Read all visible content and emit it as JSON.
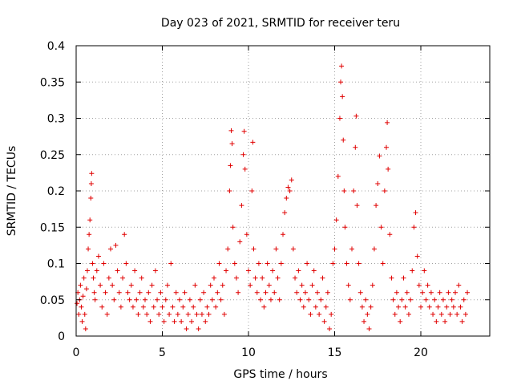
{
  "chart_data": {
    "type": "scatter",
    "title": "Day 023 of 2021, SRMTID for receiver teru",
    "xlabel": "GPS time / hours",
    "ylabel": "SRMTID / TECUs",
    "xlim": [
      0,
      24
    ],
    "ylim": [
      0,
      0.4
    ],
    "x_ticks": [
      0,
      5,
      10,
      15,
      20
    ],
    "x_tick_labels": [
      "0",
      "5",
      "10",
      "15",
      "20"
    ],
    "y_ticks": [
      0,
      0.05,
      0.1,
      0.15,
      0.2,
      0.25,
      0.3,
      0.35,
      0.4
    ],
    "y_tick_labels": [
      "0",
      "0.05",
      "0.1",
      "0.15",
      "0.2",
      "0.25",
      "0.3",
      "0.35",
      "0.4"
    ],
    "grid": true,
    "marker": "+",
    "marker_color": "#e00000",
    "series": [
      {
        "name": "teru",
        "points": [
          [
            0.05,
            0.045
          ],
          [
            0.1,
            0.06
          ],
          [
            0.15,
            0.03
          ],
          [
            0.2,
            0.05
          ],
          [
            0.25,
            0.07
          ],
          [
            0.3,
            0.04
          ],
          [
            0.35,
            0.02
          ],
          [
            0.4,
            0.055
          ],
          [
            0.45,
            0.08
          ],
          [
            0.5,
            0.03
          ],
          [
            0.55,
            0.01
          ],
          [
            0.6,
            0.065
          ],
          [
            0.65,
            0.09
          ],
          [
            0.7,
            0.12
          ],
          [
            0.75,
            0.14
          ],
          [
            0.8,
            0.16
          ],
          [
            0.85,
            0.19
          ],
          [
            0.88,
            0.21
          ],
          [
            0.9,
            0.224
          ],
          [
            0.95,
            0.1
          ],
          [
            1.0,
            0.08
          ],
          [
            1.05,
            0.06
          ],
          [
            1.1,
            0.05
          ],
          [
            1.2,
            0.09
          ],
          [
            1.3,
            0.11
          ],
          [
            1.4,
            0.07
          ],
          [
            1.5,
            0.04
          ],
          [
            1.6,
            0.1
          ],
          [
            1.7,
            0.06
          ],
          [
            1.8,
            0.03
          ],
          [
            1.9,
            0.08
          ],
          [
            2.0,
            0.12
          ],
          [
            2.1,
            0.07
          ],
          [
            2.2,
            0.05
          ],
          [
            2.3,
            0.125
          ],
          [
            2.4,
            0.09
          ],
          [
            2.5,
            0.06
          ],
          [
            2.6,
            0.04
          ],
          [
            2.7,
            0.08
          ],
          [
            2.8,
            0.14
          ],
          [
            2.9,
            0.1
          ],
          [
            3.0,
            0.06
          ],
          [
            3.1,
            0.05
          ],
          [
            3.2,
            0.07
          ],
          [
            3.3,
            0.04
          ],
          [
            3.4,
            0.09
          ],
          [
            3.5,
            0.05
          ],
          [
            3.6,
            0.03
          ],
          [
            3.7,
            0.06
          ],
          [
            3.8,
            0.08
          ],
          [
            3.9,
            0.04
          ],
          [
            4.0,
            0.05
          ],
          [
            4.1,
            0.03
          ],
          [
            4.2,
            0.06
          ],
          [
            4.3,
            0.02
          ],
          [
            4.4,
            0.07
          ],
          [
            4.5,
            0.04
          ],
          [
            4.6,
            0.09
          ],
          [
            4.7,
            0.05
          ],
          [
            4.8,
            0.03
          ],
          [
            4.9,
            0.06
          ],
          [
            5.0,
            0.04
          ],
          [
            5.1,
            0.02
          ],
          [
            5.2,
            0.05
          ],
          [
            5.3,
            0.07
          ],
          [
            5.4,
            0.03
          ],
          [
            5.5,
            0.1
          ],
          [
            5.6,
            0.04
          ],
          [
            5.7,
            0.02
          ],
          [
            5.8,
            0.06
          ],
          [
            5.9,
            0.03
          ],
          [
            6.0,
            0.05
          ],
          [
            6.1,
            0.02
          ],
          [
            6.2,
            0.04
          ],
          [
            6.3,
            0.06
          ],
          [
            6.4,
            0.01
          ],
          [
            6.5,
            0.03
          ],
          [
            6.6,
            0.05
          ],
          [
            6.7,
            0.02
          ],
          [
            6.8,
            0.04
          ],
          [
            6.9,
            0.07
          ],
          [
            7.0,
            0.03
          ],
          [
            7.1,
            0.01
          ],
          [
            7.2,
            0.05
          ],
          [
            7.3,
            0.03
          ],
          [
            7.4,
            0.06
          ],
          [
            7.5,
            0.02
          ],
          [
            7.6,
            0.04
          ],
          [
            7.7,
            0.03
          ],
          [
            7.8,
            0.07
          ],
          [
            7.9,
            0.05
          ],
          [
            8.0,
            0.08
          ],
          [
            8.1,
            0.04
          ],
          [
            8.2,
            0.06
          ],
          [
            8.3,
            0.1
          ],
          [
            8.4,
            0.05
          ],
          [
            8.5,
            0.07
          ],
          [
            8.6,
            0.03
          ],
          [
            8.7,
            0.09
          ],
          [
            8.8,
            0.12
          ],
          [
            8.9,
            0.2
          ],
          [
            8.95,
            0.235
          ],
          [
            9.0,
            0.283
          ],
          [
            9.05,
            0.265
          ],
          [
            9.1,
            0.15
          ],
          [
            9.2,
            0.1
          ],
          [
            9.3,
            0.08
          ],
          [
            9.4,
            0.06
          ],
          [
            9.5,
            0.13
          ],
          [
            9.6,
            0.18
          ],
          [
            9.7,
            0.25
          ],
          [
            9.75,
            0.282
          ],
          [
            9.8,
            0.23
          ],
          [
            9.9,
            0.14
          ],
          [
            10.0,
            0.09
          ],
          [
            10.1,
            0.07
          ],
          [
            10.2,
            0.2
          ],
          [
            10.25,
            0.267
          ],
          [
            10.3,
            0.12
          ],
          [
            10.4,
            0.08
          ],
          [
            10.5,
            0.06
          ],
          [
            10.6,
            0.1
          ],
          [
            10.7,
            0.05
          ],
          [
            10.8,
            0.08
          ],
          [
            10.9,
            0.04
          ],
          [
            11.0,
            0.06
          ],
          [
            11.1,
            0.1
          ],
          [
            11.2,
            0.07
          ],
          [
            11.3,
            0.05
          ],
          [
            11.4,
            0.09
          ],
          [
            11.5,
            0.06
          ],
          [
            11.6,
            0.12
          ],
          [
            11.7,
            0.08
          ],
          [
            11.8,
            0.05
          ],
          [
            11.9,
            0.1
          ],
          [
            12.0,
            0.14
          ],
          [
            12.1,
            0.17
          ],
          [
            12.2,
            0.19
          ],
          [
            12.3,
            0.205
          ],
          [
            12.4,
            0.2
          ],
          [
            12.5,
            0.215
          ],
          [
            12.6,
            0.12
          ],
          [
            12.7,
            0.08
          ],
          [
            12.8,
            0.06
          ],
          [
            12.9,
            0.09
          ],
          [
            13.0,
            0.05
          ],
          [
            13.1,
            0.07
          ],
          [
            13.2,
            0.04
          ],
          [
            13.3,
            0.06
          ],
          [
            13.4,
            0.1
          ],
          [
            13.5,
            0.05
          ],
          [
            13.6,
            0.03
          ],
          [
            13.7,
            0.07
          ],
          [
            13.8,
            0.09
          ],
          [
            13.9,
            0.04
          ],
          [
            14.0,
            0.06
          ],
          [
            14.1,
            0.03
          ],
          [
            14.2,
            0.05
          ],
          [
            14.3,
            0.08
          ],
          [
            14.4,
            0.02
          ],
          [
            14.5,
            0.04
          ],
          [
            14.6,
            0.06
          ],
          [
            14.7,
            0.01
          ],
          [
            14.8,
            0.03
          ],
          [
            14.9,
            0.1
          ],
          [
            15.0,
            0.12
          ],
          [
            15.1,
            0.16
          ],
          [
            15.2,
            0.22
          ],
          [
            15.3,
            0.3
          ],
          [
            15.35,
            0.35
          ],
          [
            15.4,
            0.372
          ],
          [
            15.45,
            0.33
          ],
          [
            15.5,
            0.27
          ],
          [
            15.55,
            0.2
          ],
          [
            15.6,
            0.15
          ],
          [
            15.7,
            0.1
          ],
          [
            15.8,
            0.07
          ],
          [
            15.9,
            0.05
          ],
          [
            16.0,
            0.12
          ],
          [
            16.1,
            0.2
          ],
          [
            16.2,
            0.26
          ],
          [
            16.25,
            0.303
          ],
          [
            16.3,
            0.18
          ],
          [
            16.4,
            0.1
          ],
          [
            16.5,
            0.06
          ],
          [
            16.6,
            0.04
          ],
          [
            16.7,
            0.02
          ],
          [
            16.8,
            0.05
          ],
          [
            16.9,
            0.03
          ],
          [
            17.0,
            0.01
          ],
          [
            17.1,
            0.04
          ],
          [
            17.2,
            0.07
          ],
          [
            17.3,
            0.12
          ],
          [
            17.4,
            0.18
          ],
          [
            17.5,
            0.21
          ],
          [
            17.6,
            0.248
          ],
          [
            17.7,
            0.15
          ],
          [
            17.8,
            0.1
          ],
          [
            17.9,
            0.2
          ],
          [
            18.0,
            0.26
          ],
          [
            18.05,
            0.294
          ],
          [
            18.1,
            0.23
          ],
          [
            18.2,
            0.14
          ],
          [
            18.3,
            0.08
          ],
          [
            18.4,
            0.05
          ],
          [
            18.5,
            0.03
          ],
          [
            18.6,
            0.06
          ],
          [
            18.7,
            0.04
          ],
          [
            18.8,
            0.02
          ],
          [
            18.9,
            0.05
          ],
          [
            19.0,
            0.08
          ],
          [
            19.1,
            0.04
          ],
          [
            19.2,
            0.06
          ],
          [
            19.3,
            0.03
          ],
          [
            19.4,
            0.05
          ],
          [
            19.5,
            0.09
          ],
          [
            19.6,
            0.15
          ],
          [
            19.7,
            0.17
          ],
          [
            19.8,
            0.11
          ],
          [
            19.9,
            0.07
          ],
          [
            20.0,
            0.04
          ],
          [
            20.1,
            0.06
          ],
          [
            20.2,
            0.09
          ],
          [
            20.3,
            0.05
          ],
          [
            20.4,
            0.07
          ],
          [
            20.5,
            0.04
          ],
          [
            20.6,
            0.06
          ],
          [
            20.7,
            0.03
          ],
          [
            20.8,
            0.05
          ],
          [
            20.9,
            0.02
          ],
          [
            21.0,
            0.04
          ],
          [
            21.1,
            0.06
          ],
          [
            21.2,
            0.03
          ],
          [
            21.3,
            0.05
          ],
          [
            21.4,
            0.02
          ],
          [
            21.5,
            0.04
          ],
          [
            21.6,
            0.06
          ],
          [
            21.7,
            0.03
          ],
          [
            21.8,
            0.05
          ],
          [
            21.9,
            0.04
          ],
          [
            22.0,
            0.06
          ],
          [
            22.1,
            0.03
          ],
          [
            22.2,
            0.07
          ],
          [
            22.3,
            0.04
          ],
          [
            22.4,
            0.02
          ],
          [
            22.5,
            0.05
          ],
          [
            22.6,
            0.03
          ],
          [
            22.7,
            0.06
          ]
        ]
      }
    ]
  }
}
